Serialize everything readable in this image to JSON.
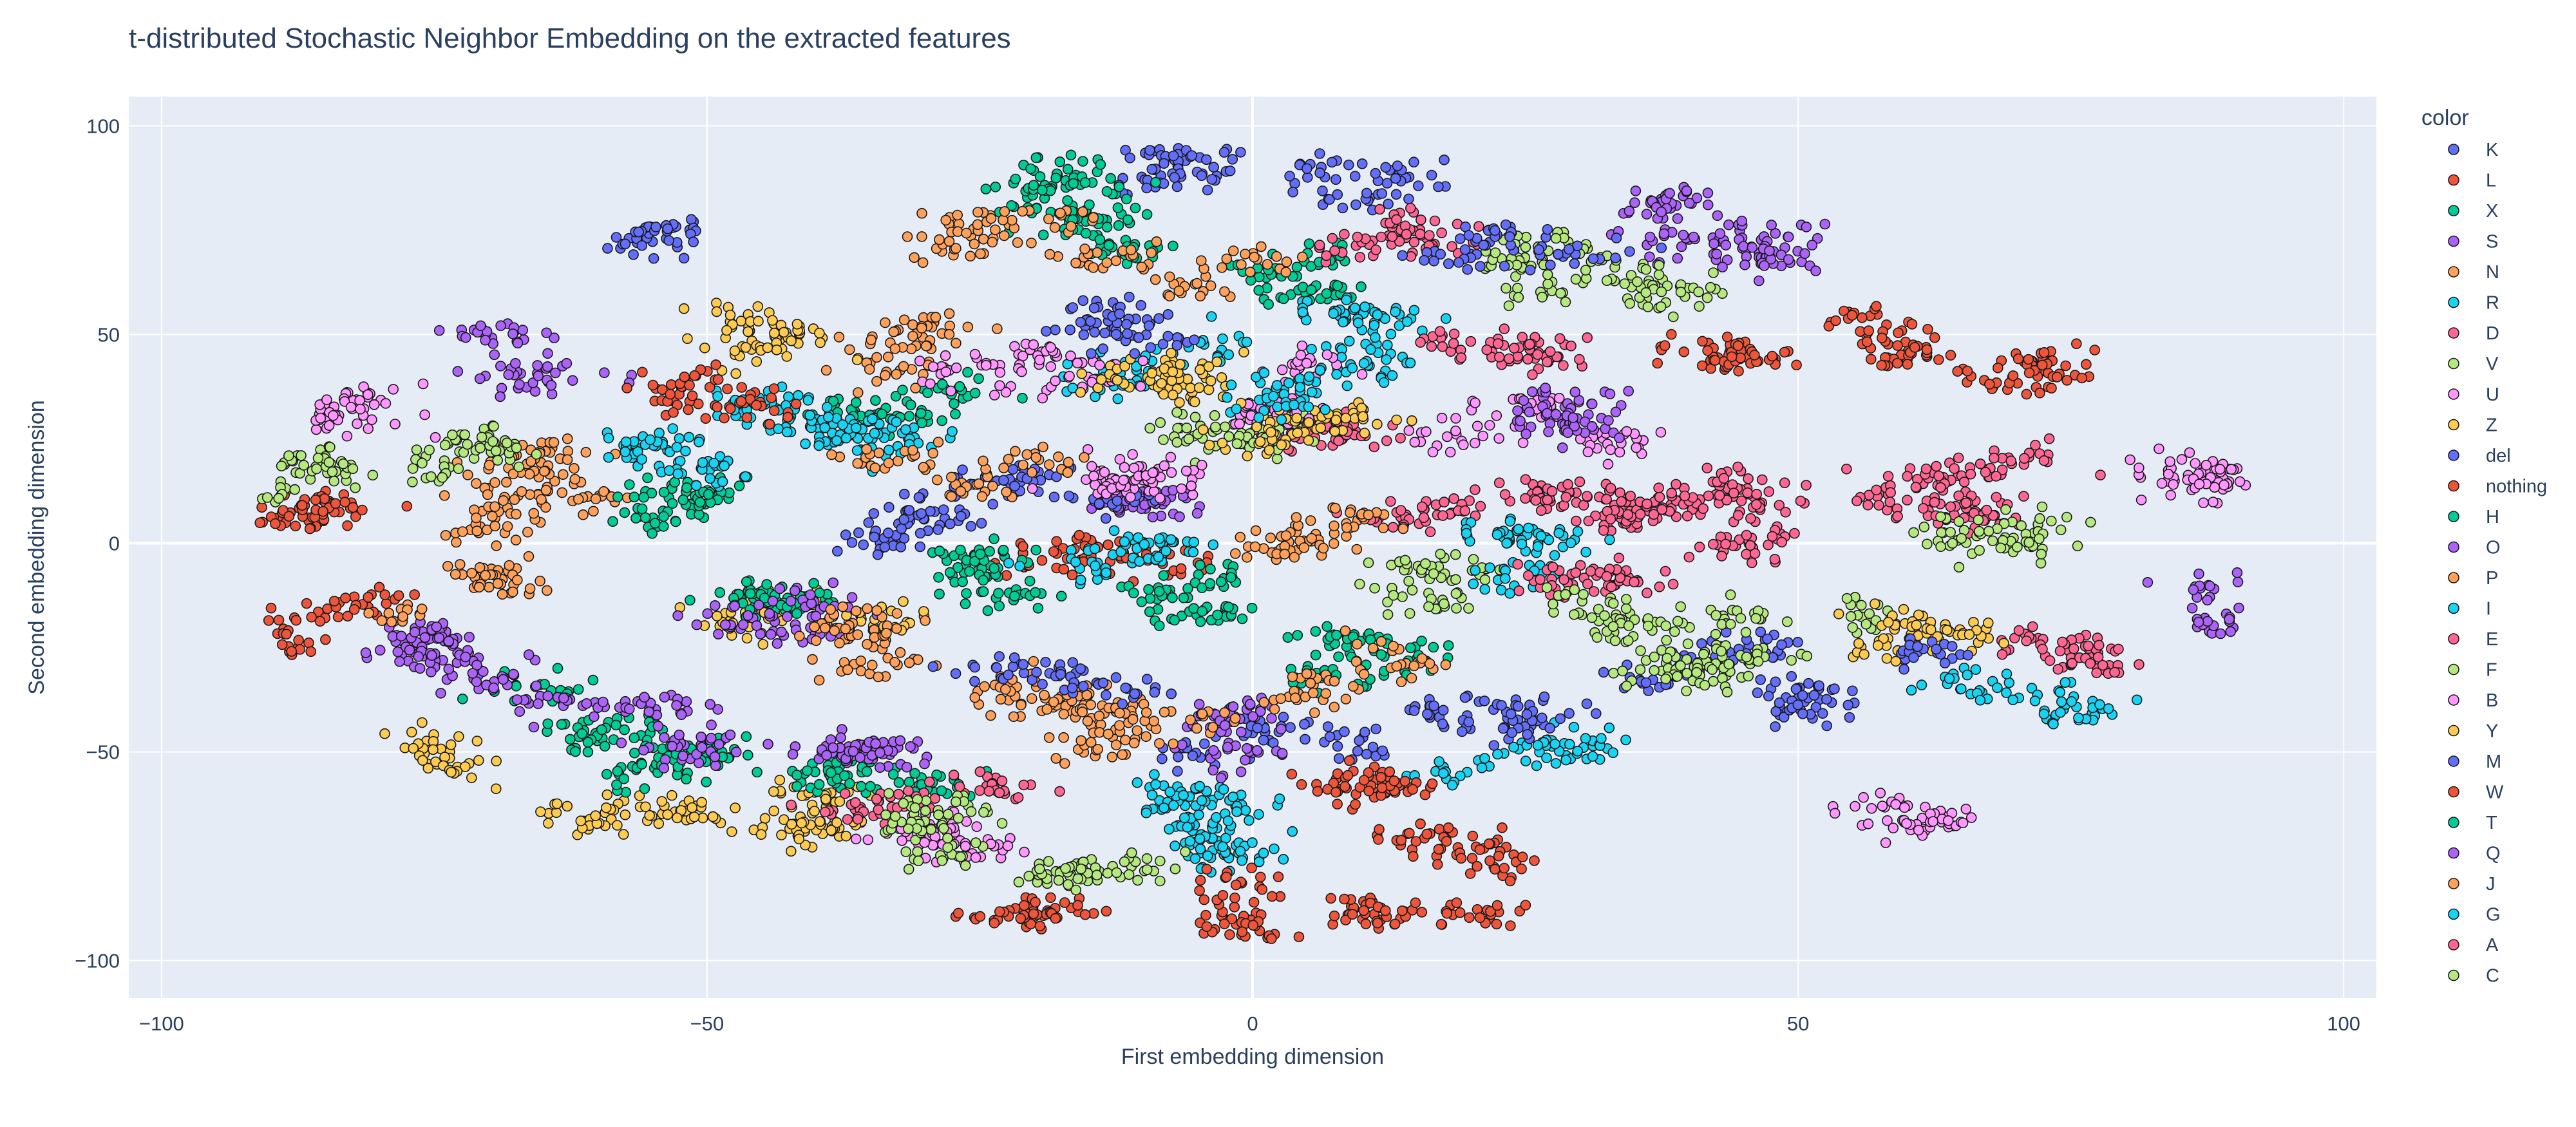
{
  "chart_data": {
    "type": "scatter",
    "title": "t-distributed Stochastic Neighbor Embedding on the extracted features",
    "xlabel": "First embedding dimension",
    "ylabel": "Second embedding dimension",
    "xlim": [
      -103,
      103
    ],
    "ylim": [
      -109,
      107
    ],
    "x_ticks": [
      -100,
      -50,
      0,
      50,
      100
    ],
    "x_tick_labels": [
      "−100",
      "−50",
      "0",
      "50",
      "100"
    ],
    "y_ticks": [
      -100,
      -50,
      0,
      50,
      100
    ],
    "y_tick_labels": [
      "−100",
      "−50",
      "0",
      "50",
      "100"
    ],
    "grid": true,
    "plot_background": "#E5ECF6",
    "marker_outline": "#1a1a1a",
    "legend": {
      "title": "color",
      "position": "right"
    },
    "series": [
      {
        "name": "K",
        "color": "#636EFA",
        "centers": [
          [
            -55,
            75
          ],
          [
            -8,
            88
          ],
          [
            10,
            85
          ],
          [
            -30,
            5
          ]
        ]
      },
      {
        "name": "L",
        "color": "#EF553B",
        "centers": [
          [
            -88,
            5
          ],
          [
            -85,
            -22
          ],
          [
            -20,
            -88
          ],
          [
            45,
            45
          ]
        ]
      },
      {
        "name": "X",
        "color": "#00CC96",
        "centers": [
          [
            -12,
            75
          ],
          [
            -30,
            28
          ],
          [
            -18,
            88
          ],
          [
            5,
            62
          ]
        ]
      },
      {
        "name": "S",
        "color": "#AB63FA",
        "centers": [
          [
            -65,
            44
          ],
          [
            40,
            78
          ],
          [
            48,
            70
          ],
          [
            -10,
            10
          ]
        ]
      },
      {
        "name": "N",
        "color": "#FFA15A",
        "centers": [
          [
            -25,
            75
          ],
          [
            -5,
            68
          ],
          [
            -30,
            45
          ],
          [
            -65,
            5
          ]
        ]
      },
      {
        "name": "R",
        "color": "#19D3F3",
        "centers": [
          [
            -45,
            30
          ],
          [
            -5,
            45
          ],
          [
            -35,
            28
          ],
          [
            10,
            48
          ]
        ]
      },
      {
        "name": "D",
        "color": "#FF6692",
        "centers": [
          [
            15,
            72
          ],
          [
            25,
            48
          ],
          [
            5,
            30
          ],
          [
            20,
            10
          ]
        ]
      },
      {
        "name": "V",
        "color": "#B6E880",
        "centers": [
          [
            25,
            65
          ],
          [
            38,
            60
          ],
          [
            0,
            30
          ],
          [
            -85,
            15
          ]
        ]
      },
      {
        "name": "U",
        "color": "#FF97FF",
        "centers": [
          [
            -82,
            30
          ],
          [
            -20,
            40
          ],
          [
            5,
            38
          ],
          [
            85,
            15
          ]
        ]
      },
      {
        "name": "Z",
        "color": "#FECB52",
        "centers": [
          [
            -45,
            52
          ],
          [
            -10,
            40
          ],
          [
            3,
            28
          ],
          [
            -40,
            -20
          ]
        ]
      },
      {
        "name": "del",
        "color": "#636EFA",
        "centers": [
          [
            -20,
            15
          ],
          [
            -15,
            55
          ],
          [
            25,
            70
          ],
          [
            40,
            -30
          ]
        ]
      },
      {
        "name": "nothing",
        "color": "#EF553B",
        "centers": [
          [
            -50,
            35
          ],
          [
            60,
            45
          ],
          [
            70,
            40
          ],
          [
            -15,
            -5
          ]
        ]
      },
      {
        "name": "H",
        "color": "#00CC96",
        "centers": [
          [
            -50,
            10
          ],
          [
            -45,
            -15
          ],
          [
            -60,
            -45
          ],
          [
            -25,
            -10
          ]
        ]
      },
      {
        "name": "O",
        "color": "#AB63FA",
        "centers": [
          [
            -40,
            -15
          ],
          [
            -75,
            -25
          ],
          [
            -65,
            -35
          ],
          [
            88,
            -15
          ]
        ]
      },
      {
        "name": "P",
        "color": "#FFA15A",
        "centers": [
          [
            -75,
            -10
          ],
          [
            -35,
            -20
          ],
          [
            -18,
            -40
          ],
          [
            5,
            0
          ]
        ]
      },
      {
        "name": "I",
        "color": "#19D3F3",
        "centers": [
          [
            -10,
            0
          ],
          [
            -5,
            -70
          ],
          [
            30,
            -50
          ],
          [
            70,
            -40
          ]
        ]
      },
      {
        "name": "E",
        "color": "#FF6692",
        "centers": [
          [
            35,
            10
          ],
          [
            42,
            5
          ],
          [
            65,
            15
          ],
          [
            75,
            -25
          ]
        ]
      },
      {
        "name": "F",
        "color": "#B6E880",
        "centers": [
          [
            15,
            -10
          ],
          [
            40,
            -30
          ],
          [
            50,
            -20
          ],
          [
            -15,
            -80
          ]
        ]
      },
      {
        "name": "B",
        "color": "#FF97FF",
        "centers": [
          [
            -25,
            -70
          ],
          [
            -10,
            20
          ],
          [
            60,
            -65
          ],
          [
            25,
            25
          ]
        ]
      },
      {
        "name": "Y",
        "color": "#FECB52",
        "centers": [
          [
            -75,
            -55
          ],
          [
            -55,
            -65
          ],
          [
            -45,
            -65
          ],
          [
            60,
            -20
          ]
        ]
      },
      {
        "name": "M",
        "color": "#636EFA",
        "centers": [
          [
            -15,
            -35
          ],
          [
            0,
            -50
          ],
          [
            25,
            -40
          ],
          [
            55,
            -35
          ]
        ]
      },
      {
        "name": "W",
        "color": "#EF553B",
        "centers": [
          [
            10,
            -60
          ],
          [
            15,
            -85
          ],
          [
            0,
            -85
          ],
          [
            20,
            -75
          ]
        ]
      },
      {
        "name": "T",
        "color": "#00CC96",
        "centers": [
          [
            -55,
            -50
          ],
          [
            -35,
            -55
          ],
          [
            5,
            -30
          ],
          [
            -5,
            -15
          ]
        ]
      },
      {
        "name": "Q",
        "color": "#AB63FA",
        "centers": [
          [
            -50,
            -45
          ],
          [
            0,
            -45
          ],
          [
            30,
            30
          ],
          [
            -35,
            -50
          ]
        ]
      },
      {
        "name": "J",
        "color": "#FFA15A",
        "centers": [
          [
            -12,
            -45
          ],
          [
            -25,
            20
          ],
          [
            -65,
            15
          ],
          [
            10,
            -35
          ]
        ]
      },
      {
        "name": "G",
        "color": "#19D3F3",
        "centers": [
          [
            -55,
            20
          ],
          [
            10,
            40
          ],
          [
            -5,
            -60
          ],
          [
            25,
            -5
          ]
        ]
      },
      {
        "name": "A",
        "color": "#FF6692",
        "centers": [
          [
            45,
            10
          ],
          [
            65,
            10
          ],
          [
            30,
            -5
          ],
          [
            -30,
            -60
          ]
        ]
      },
      {
        "name": "C",
        "color": "#B6E880",
        "centers": [
          [
            -30,
            -70
          ],
          [
            35,
            -20
          ],
          [
            70,
            5
          ],
          [
            -70,
            20
          ]
        ]
      }
    ]
  }
}
